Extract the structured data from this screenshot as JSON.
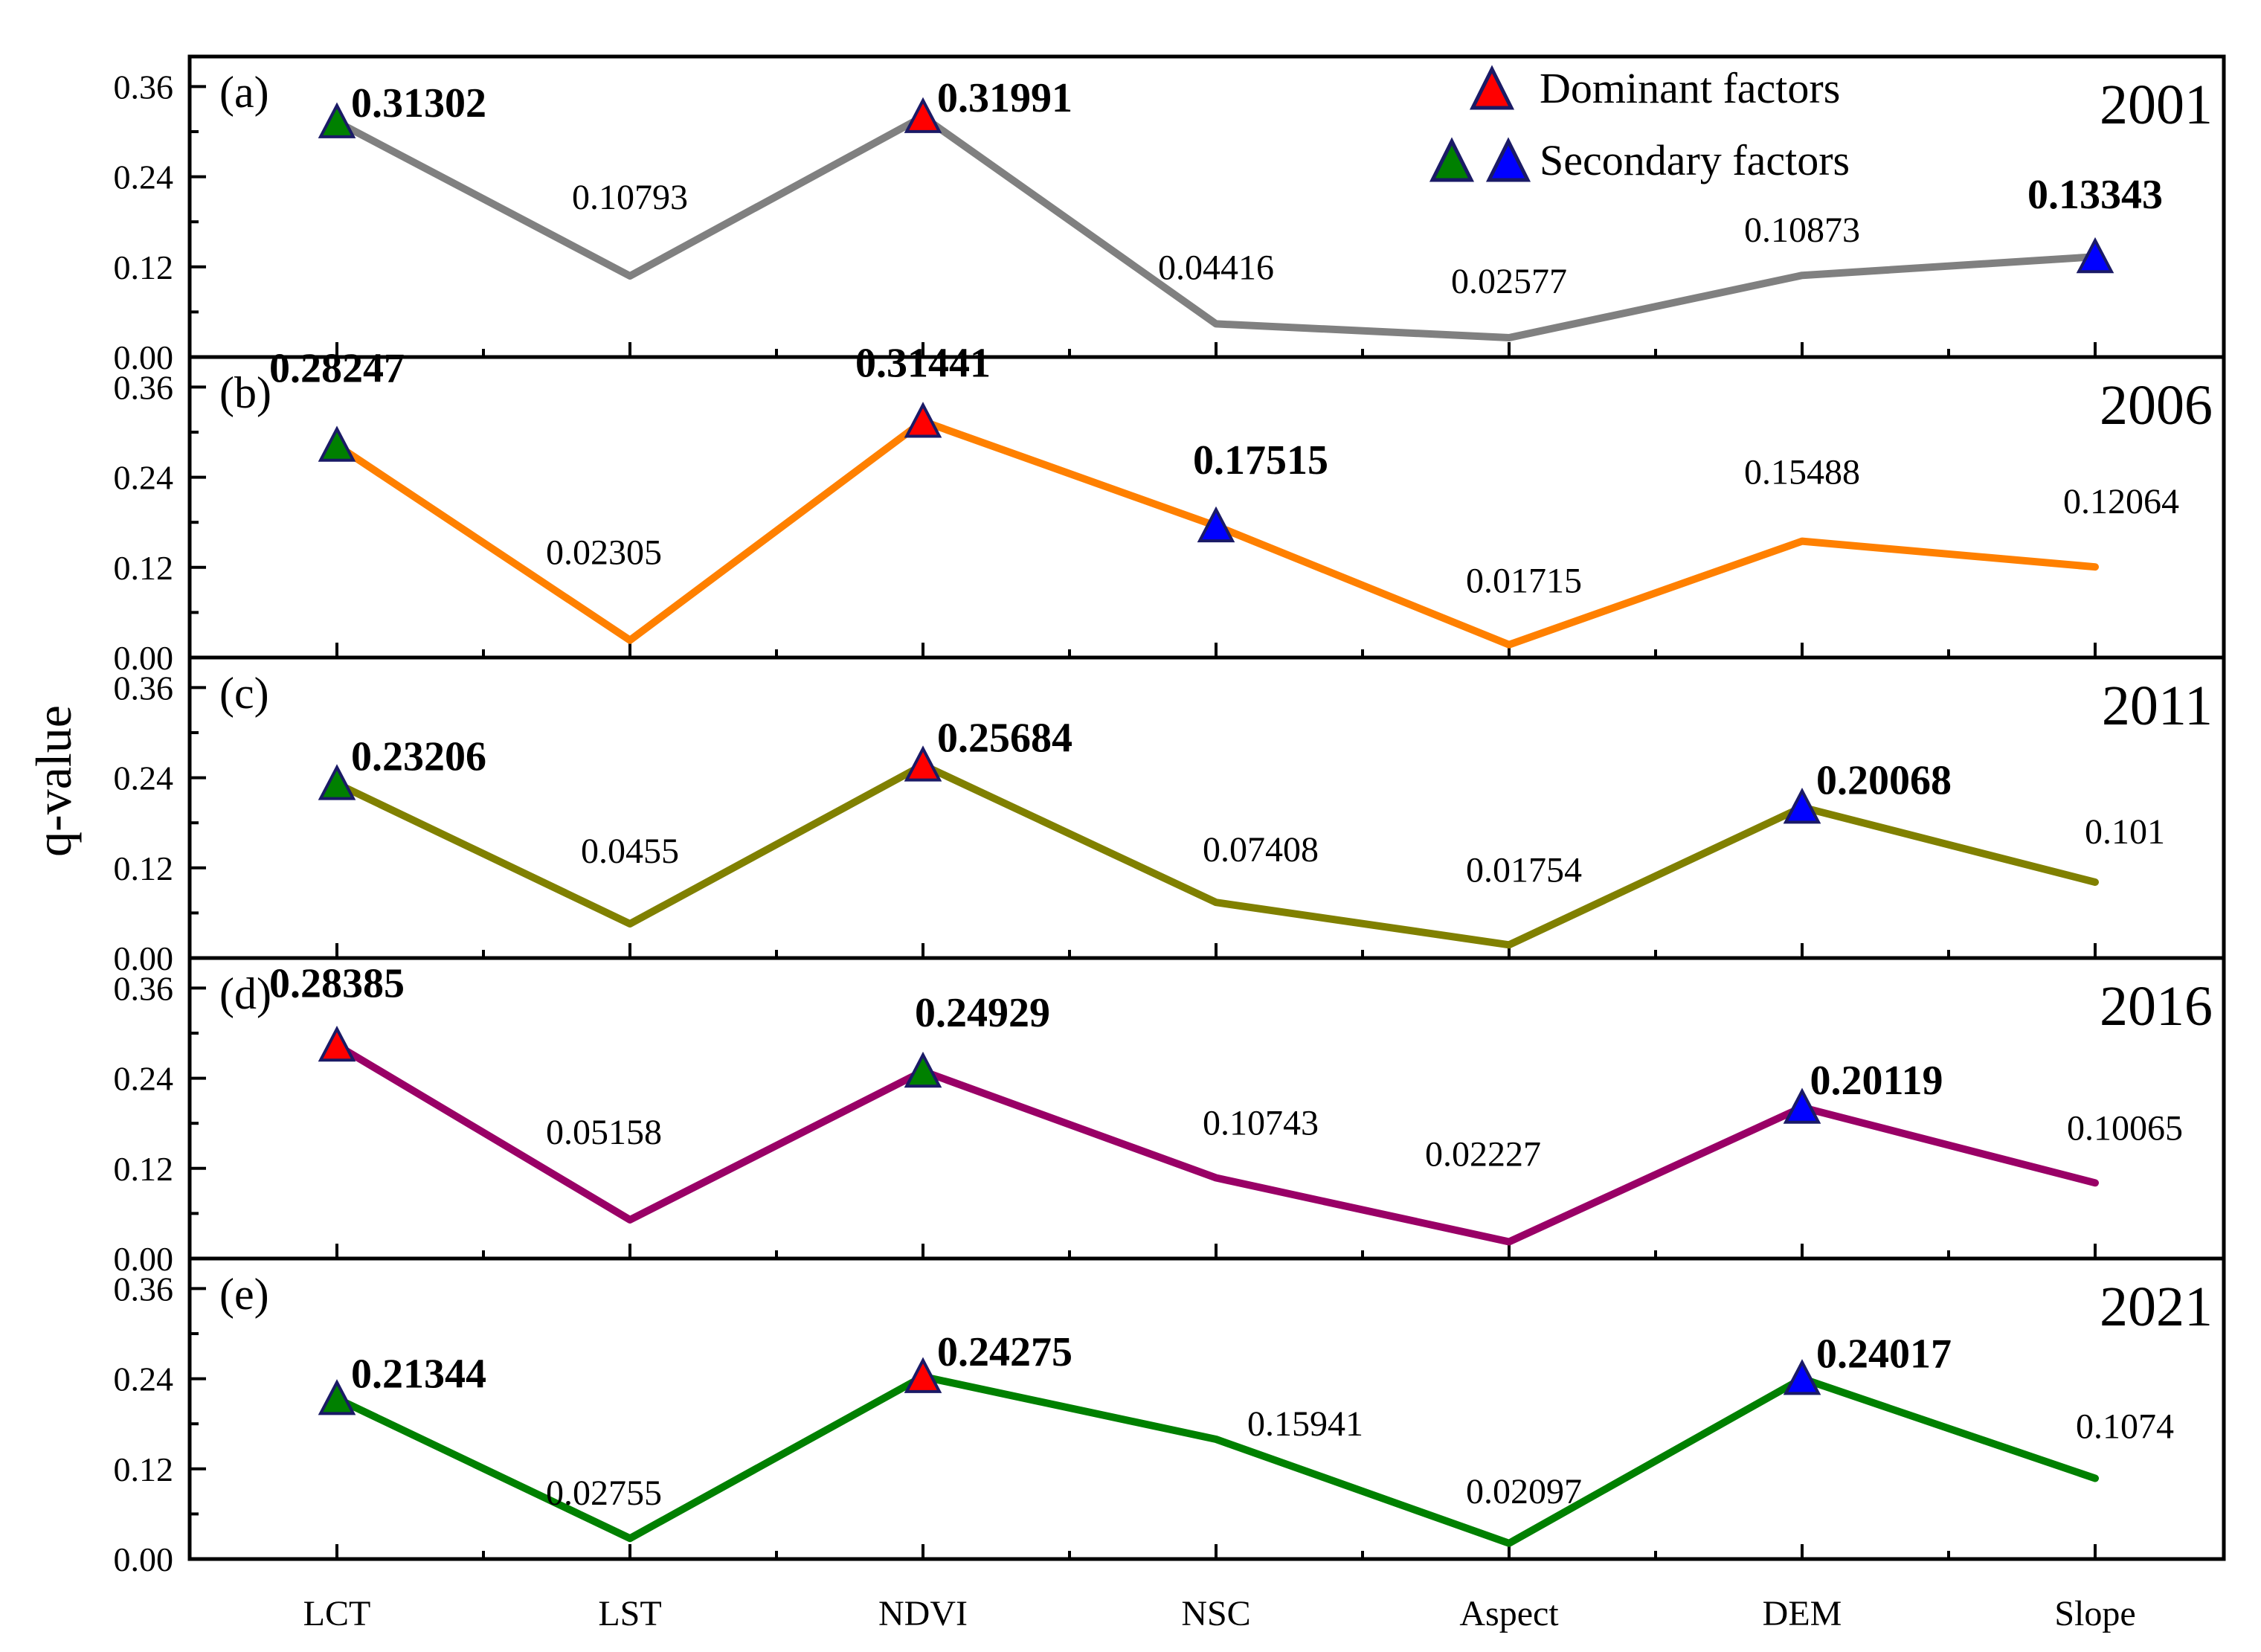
{
  "chart_data": {
    "type": "line",
    "ylabel": "q-value",
    "categories": [
      "LCT",
      "LST",
      "NDVI",
      "NSC",
      "Aspect",
      "DEM",
      "Slope"
    ],
    "yticks": [
      "0.00",
      "0.12",
      "0.24",
      "0.36"
    ],
    "ylim": [
      0,
      0.4
    ],
    "legend": {
      "position": "top-right",
      "dominant_label": "Dominant factors",
      "secondary_label": "Secondary factors",
      "dominant_color": "#ff0000",
      "secondary_colors": [
        "#008000",
        "#0000ff"
      ]
    },
    "panels": [
      {
        "tag": "(a)",
        "year": "2001",
        "color": "#808080",
        "values": [
          0.31302,
          0.10793,
          0.31991,
          0.04416,
          0.02577,
          0.10873,
          0.13343
        ],
        "labels": [
          "0.31302",
          "0.10793",
          "0.31991",
          "0.04416",
          "0.02577",
          "0.10873",
          "0.13343"
        ],
        "bold": [
          true,
          false,
          true,
          false,
          false,
          false,
          true
        ],
        "markers": [
          "green",
          null,
          "red",
          null,
          null,
          null,
          "blue"
        ]
      },
      {
        "tag": "(b)",
        "year": "2006",
        "color": "#ff8000",
        "values": [
          0.28247,
          0.02305,
          0.31441,
          0.17515,
          0.01715,
          0.15488,
          0.12064
        ],
        "labels": [
          "0.28247",
          "0.02305",
          "0.31441",
          "0.17515",
          "0.01715",
          "0.15488",
          "0.12064"
        ],
        "bold": [
          true,
          false,
          true,
          true,
          false,
          false,
          false
        ],
        "markers": [
          "green",
          null,
          "red",
          "blue",
          null,
          null,
          null
        ]
      },
      {
        "tag": "(c)",
        "year": "2011",
        "color": "#808000",
        "values": [
          0.23206,
          0.0455,
          0.25684,
          0.07408,
          0.01754,
          0.20068,
          0.101
        ],
        "labels": [
          "0.23206",
          "0.0455",
          "0.25684",
          "0.07408",
          "0.01754",
          "0.20068",
          "0.101"
        ],
        "bold": [
          true,
          false,
          true,
          false,
          false,
          true,
          false
        ],
        "markers": [
          "green",
          null,
          "red",
          null,
          null,
          "blue",
          null
        ]
      },
      {
        "tag": "(d)",
        "year": "2016",
        "color": "#990066",
        "values": [
          0.28385,
          0.05158,
          0.24929,
          0.10743,
          0.02227,
          0.20119,
          0.10065
        ],
        "labels": [
          "0.28385",
          "0.05158",
          "0.24929",
          "0.10743",
          "0.02227",
          "0.20119",
          "0.10065"
        ],
        "bold": [
          true,
          false,
          true,
          false,
          false,
          true,
          false
        ],
        "markers": [
          "red",
          null,
          "green",
          null,
          null,
          "blue",
          null
        ]
      },
      {
        "tag": "(e)",
        "year": "2021",
        "color": "#008000",
        "values": [
          0.21344,
          0.02755,
          0.24275,
          0.15941,
          0.02097,
          0.24017,
          0.1074
        ],
        "labels": [
          "0.21344",
          "0.02755",
          "0.24275",
          "0.15941",
          "0.02097",
          "0.24017",
          "0.1074"
        ],
        "bold": [
          true,
          false,
          true,
          false,
          false,
          true,
          false
        ],
        "markers": [
          "green",
          null,
          "red",
          null,
          null,
          "blue",
          null
        ]
      }
    ]
  }
}
